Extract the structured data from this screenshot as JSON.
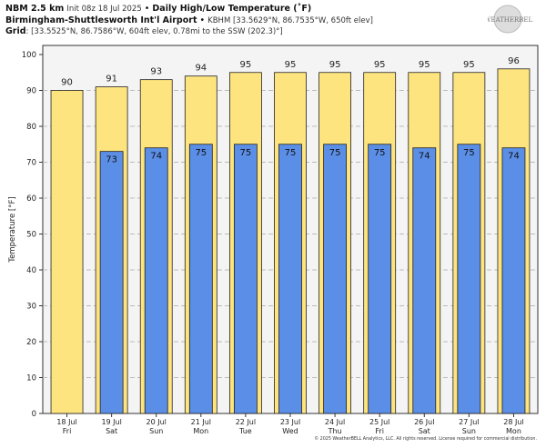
{
  "header": {
    "model": "NBM 2.5 km",
    "init": "Init 08z 18 Jul 2025",
    "sep": "•",
    "title": "Daily High/Low Temperature (˚F)",
    "station": "Birmingham-Shuttlesworth Int'l Airport",
    "station_info": "KBHM [33.5629°N, 86.7535°W, 650ft elev]",
    "grid_label": "Grid",
    "grid_info": ": [33.5525°N, 86.7586°W, 604ft elev, 0.78mi to the SSW (202.3)°]"
  },
  "logo": "WeatherBELL",
  "copyright": "© 2025 WeatherBELL Analytics, LLC. All rights reserved. License required for commercial distribution.",
  "chart_data": {
    "type": "bar",
    "ylabel": "Temperature [°F]",
    "ylim": [
      0,
      100
    ],
    "yticks": [
      0,
      10,
      20,
      30,
      40,
      50,
      60,
      70,
      80,
      90,
      100
    ],
    "grid": true,
    "categories": [
      [
        "18 Jul",
        "Fri"
      ],
      [
        "19 Jul",
        "Sat"
      ],
      [
        "20 Jul",
        "Sun"
      ],
      [
        "21 Jul",
        "Mon"
      ],
      [
        "22 Jul",
        "Tue"
      ],
      [
        "23 Jul",
        "Wed"
      ],
      [
        "24 Jul",
        "Thu"
      ],
      [
        "25 Jul",
        "Fri"
      ],
      [
        "26 Jul",
        "Sat"
      ],
      [
        "27 Jul",
        "Sun"
      ],
      [
        "28 Jul",
        "Mon"
      ]
    ],
    "series": [
      {
        "values": [
          90,
          91,
          93,
          94,
          95,
          95,
          95,
          95,
          95,
          95,
          96
        ],
        "color": "#fde47f"
      },
      {
        "values": [
          null,
          73,
          74,
          75,
          75,
          75,
          75,
          75,
          74,
          75,
          74
        ],
        "color": "#5b8ee6"
      }
    ]
  }
}
